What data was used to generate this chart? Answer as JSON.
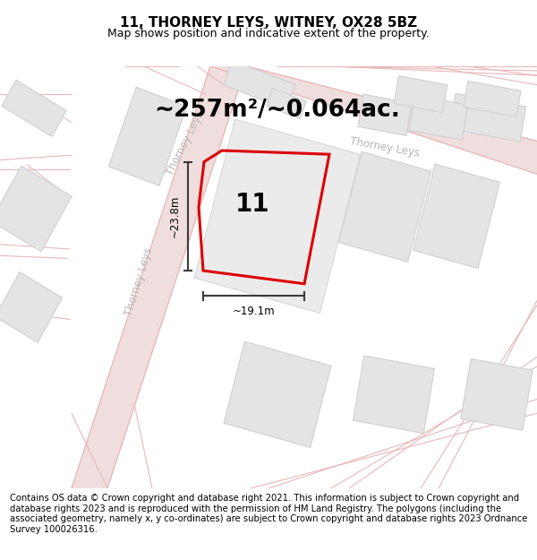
{
  "title": "11, THORNEY LEYS, WITNEY, OX28 5BZ",
  "subtitle": "Map shows position and indicative extent of the property.",
  "area_text": "~257m²/~0.064ac.",
  "property_number": "11",
  "dim_width": "~19.1m",
  "dim_height": "~23.8m",
  "footer": "Contains OS data © Crown copyright and database right 2021. This information is subject to Crown copyright and database rights 2023 and is reproduced with the permission of HM Land Registry. The polygons (including the associated geometry, namely x, y co-ordinates) are subject to Crown copyright and database rights 2023 Ordnance Survey 100026316.",
  "map_bg": "#f7f7f7",
  "road_fill": "#f0dede",
  "road_line": "#e8b8b8",
  "building_color": "#e4e4e4",
  "building_edge": "#d0d0d0",
  "property_outline_color": "#dd0000",
  "road_label_color": "#b8b8b8",
  "dim_color": "#3a3a3a",
  "title_fontsize": 11,
  "subtitle_fontsize": 9,
  "area_fontsize": 19,
  "number_fontsize": 20,
  "road_label_fontsize": 8.5,
  "dim_fontsize": 8.5,
  "footer_fontsize": 7.2
}
